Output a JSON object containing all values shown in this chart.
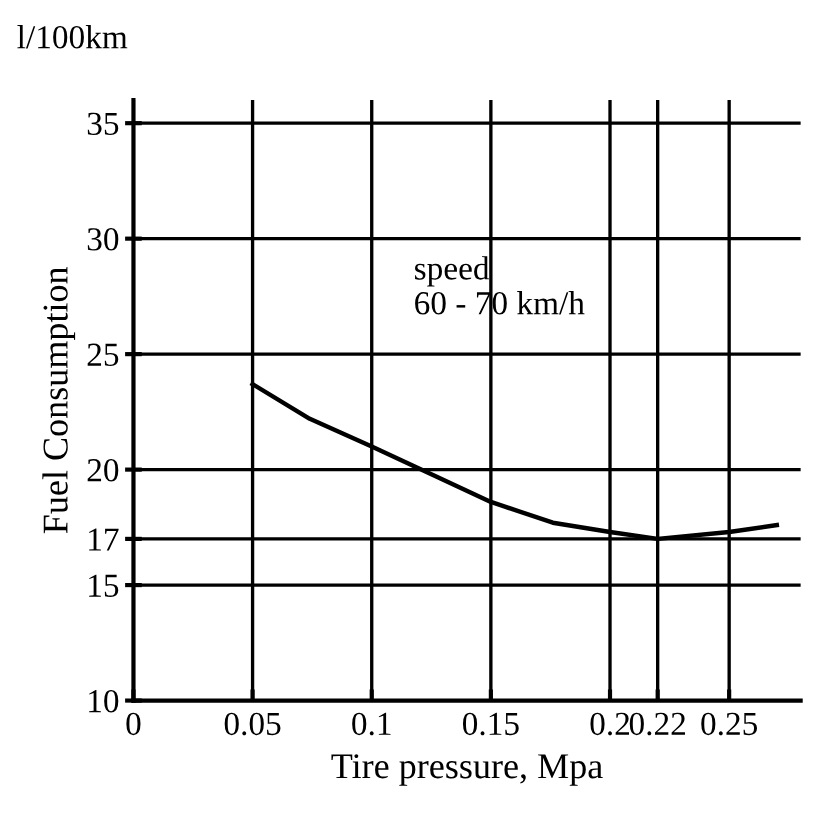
{
  "chart_data": {
    "type": "line",
    "xlabel": "Tire pressure, Mpa",
    "ylabel": "Fuel Consumption",
    "annotations": [
      "l/100km",
      "speed\n60 - 70 km/h"
    ],
    "x": [
      0.05,
      0.074,
      0.1,
      0.123,
      0.15,
      0.176,
      0.2,
      0.22,
      0.25,
      0.27
    ],
    "series": [
      {
        "color": "#000000",
        "values": [
          23.7,
          22.2,
          21.0,
          19.9,
          18.6,
          17.7,
          17.3,
          17.0,
          17.3,
          17.6
        ]
      }
    ],
    "xlim": [
      0,
      0.28
    ],
    "ylim": [
      10,
      36
    ],
    "xticks": [
      0,
      0.05,
      0.1,
      0.15,
      {
        "value": 0.2,
        "label": "0.2"
      },
      0.22,
      0.25
    ],
    "yticks": [
      10,
      15,
      17,
      20,
      25,
      30,
      35
    ],
    "grid": true,
    "legend": false,
    "marker": "none",
    "line_style": "solid"
  }
}
